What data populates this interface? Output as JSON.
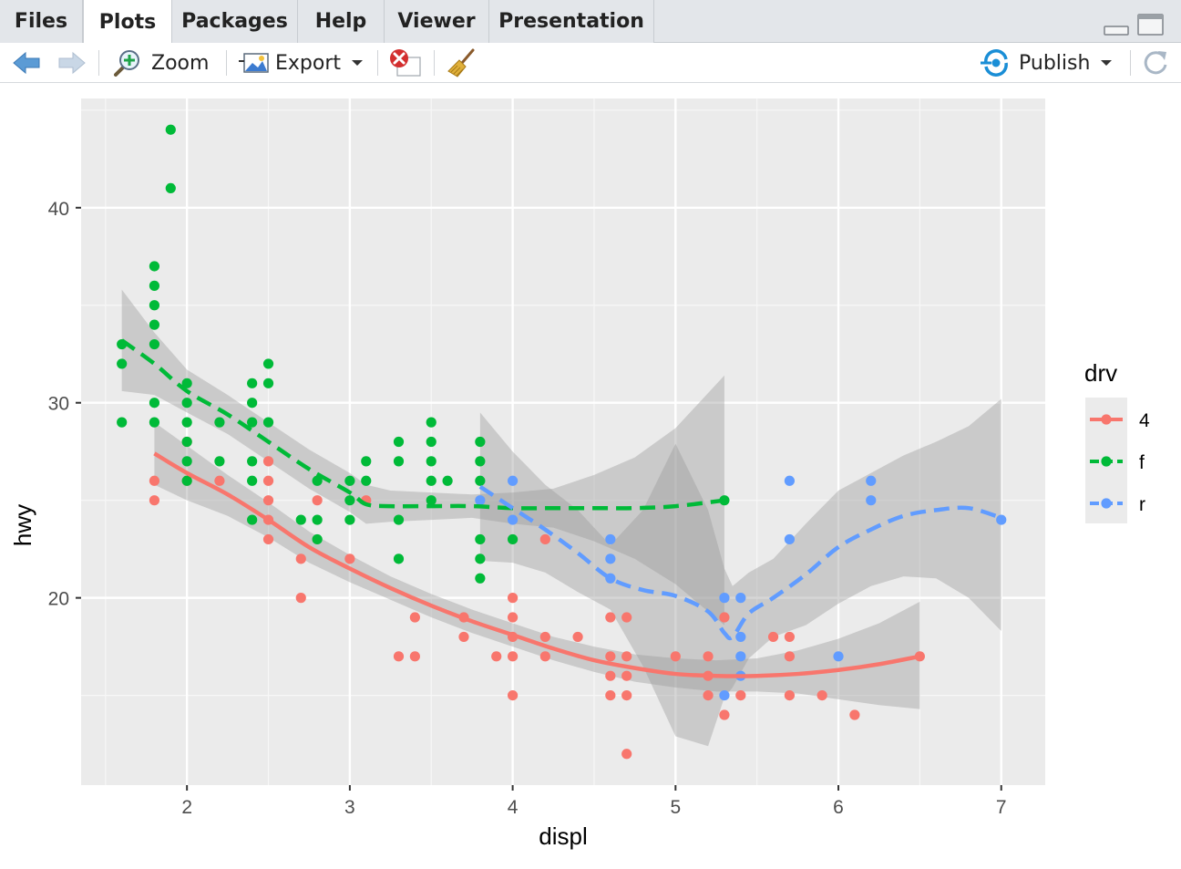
{
  "tabs": [
    {
      "label": "Files",
      "active": false
    },
    {
      "label": "Plots",
      "active": true
    },
    {
      "label": "Packages",
      "active": false
    },
    {
      "label": "Help",
      "active": false
    },
    {
      "label": "Viewer",
      "active": false
    },
    {
      "label": "Presentation",
      "active": false
    }
  ],
  "toolbar": {
    "zoom_label": "Zoom",
    "export_label": "Export",
    "publish_label": "Publish"
  },
  "colors": {
    "publish_blue": "#1a8ed6",
    "panel_bg": "#ebebeb",
    "series_4": "#f8766d",
    "series_f": "#00ba38",
    "series_r": "#619cff"
  },
  "icons": [
    "back-arrow-icon",
    "forward-arrow-icon",
    "zoom-icon",
    "export-icon",
    "remove-plot-icon",
    "broom-icon",
    "publish-icon",
    "refresh-icon",
    "minimize-icon",
    "maximize-icon"
  ],
  "chart_data": {
    "type": "scatter",
    "xlabel": "displ",
    "ylabel": "hwy",
    "xlim": [
      1.35,
      7.27
    ],
    "ylim": [
      10.4,
      45.6
    ],
    "xticks": [
      2,
      3,
      4,
      5,
      6,
      7
    ],
    "yticks": [
      20,
      30,
      40
    ],
    "grid": true,
    "legend": {
      "title": "drv",
      "position": "right",
      "entries": [
        "4",
        "f",
        "r"
      ]
    },
    "series": [
      {
        "name": "4",
        "line_style": "solid",
        "points": [
          [
            1.8,
            26
          ],
          [
            1.8,
            25
          ],
          [
            2.0,
            28
          ],
          [
            2.0,
            26
          ],
          [
            2.2,
            26
          ],
          [
            2.5,
            27
          ],
          [
            2.5,
            26
          ],
          [
            2.5,
            25
          ],
          [
            2.5,
            24
          ],
          [
            2.5,
            23
          ],
          [
            2.7,
            22
          ],
          [
            2.7,
            20
          ],
          [
            2.8,
            25
          ],
          [
            3.0,
            22
          ],
          [
            3.1,
            25
          ],
          [
            3.3,
            17
          ],
          [
            3.4,
            17
          ],
          [
            3.4,
            19
          ],
          [
            3.7,
            19
          ],
          [
            3.7,
            18
          ],
          [
            3.9,
            17
          ],
          [
            4.0,
            20
          ],
          [
            4.0,
            19
          ],
          [
            4.0,
            18
          ],
          [
            4.0,
            17
          ],
          [
            4.0,
            15
          ],
          [
            4.2,
            23
          ],
          [
            4.2,
            18
          ],
          [
            4.2,
            17
          ],
          [
            4.4,
            18
          ],
          [
            4.6,
            19
          ],
          [
            4.6,
            17
          ],
          [
            4.6,
            16
          ],
          [
            4.6,
            15
          ],
          [
            4.7,
            19
          ],
          [
            4.7,
            17
          ],
          [
            4.7,
            16
          ],
          [
            4.7,
            15
          ],
          [
            4.7,
            12
          ],
          [
            5.0,
            17
          ],
          [
            5.2,
            17
          ],
          [
            5.2,
            16
          ],
          [
            5.2,
            15
          ],
          [
            5.3,
            19
          ],
          [
            5.3,
            14
          ],
          [
            5.4,
            15
          ],
          [
            5.6,
            18
          ],
          [
            5.7,
            18
          ],
          [
            5.7,
            17
          ],
          [
            5.7,
            15
          ],
          [
            5.9,
            15
          ],
          [
            6.1,
            14
          ],
          [
            6.5,
            17
          ]
        ],
        "fit": [
          [
            1.8,
            27.4
          ],
          [
            2.0,
            26.4
          ],
          [
            2.25,
            25.3
          ],
          [
            2.5,
            24.0
          ],
          [
            2.75,
            22.6
          ],
          [
            3.0,
            21.5
          ],
          [
            3.25,
            20.5
          ],
          [
            3.5,
            19.6
          ],
          [
            3.75,
            18.8
          ],
          [
            4.0,
            18.1
          ],
          [
            4.25,
            17.4
          ],
          [
            4.5,
            16.8
          ],
          [
            4.75,
            16.4
          ],
          [
            5.0,
            16.1
          ],
          [
            5.25,
            16.0
          ],
          [
            5.5,
            16.0
          ],
          [
            5.75,
            16.1
          ],
          [
            6.0,
            16.3
          ],
          [
            6.25,
            16.6
          ],
          [
            6.5,
            17.0
          ]
        ],
        "band": [
          [
            1.8,
            29.0,
            25.8
          ],
          [
            2.0,
            27.8,
            25.0
          ],
          [
            2.25,
            26.3,
            24.2
          ],
          [
            2.5,
            24.9,
            23.1
          ],
          [
            2.75,
            23.4,
            21.8
          ],
          [
            3.0,
            22.2,
            20.8
          ],
          [
            3.25,
            21.1,
            19.9
          ],
          [
            3.5,
            20.2,
            19.0
          ],
          [
            3.75,
            19.4,
            18.2
          ],
          [
            4.0,
            18.7,
            17.5
          ],
          [
            4.25,
            18.0,
            16.8
          ],
          [
            4.5,
            17.5,
            16.2
          ],
          [
            4.75,
            17.1,
            15.7
          ],
          [
            5.0,
            16.9,
            15.4
          ],
          [
            5.25,
            16.8,
            15.2
          ],
          [
            5.5,
            16.9,
            15.2
          ],
          [
            5.75,
            17.3,
            15.1
          ],
          [
            6.0,
            17.9,
            14.8
          ],
          [
            6.25,
            18.7,
            14.5
          ],
          [
            6.5,
            19.8,
            14.3
          ]
        ]
      },
      {
        "name": "f",
        "line_style": "dashed",
        "points": [
          [
            1.6,
            33
          ],
          [
            1.6,
            32
          ],
          [
            1.6,
            29
          ],
          [
            1.8,
            37
          ],
          [
            1.8,
            36
          ],
          [
            1.8,
            35
          ],
          [
            1.8,
            34
          ],
          [
            1.8,
            33
          ],
          [
            1.8,
            30
          ],
          [
            1.8,
            29
          ],
          [
            1.9,
            44
          ],
          [
            1.9,
            41
          ],
          [
            2.0,
            31
          ],
          [
            2.0,
            30
          ],
          [
            2.0,
            29
          ],
          [
            2.0,
            28
          ],
          [
            2.0,
            27
          ],
          [
            2.0,
            26
          ],
          [
            2.2,
            29
          ],
          [
            2.2,
            27
          ],
          [
            2.4,
            31
          ],
          [
            2.4,
            30
          ],
          [
            2.4,
            29
          ],
          [
            2.4,
            27
          ],
          [
            2.4,
            26
          ],
          [
            2.4,
            24
          ],
          [
            2.5,
            32
          ],
          [
            2.5,
            31
          ],
          [
            2.5,
            29
          ],
          [
            2.7,
            24
          ],
          [
            2.8,
            26
          ],
          [
            2.8,
            24
          ],
          [
            2.8,
            23
          ],
          [
            3.0,
            26
          ],
          [
            3.0,
            25
          ],
          [
            3.0,
            24
          ],
          [
            3.1,
            27
          ],
          [
            3.1,
            26
          ],
          [
            3.3,
            28
          ],
          [
            3.3,
            27
          ],
          [
            3.3,
            24
          ],
          [
            3.3,
            22
          ],
          [
            3.5,
            29
          ],
          [
            3.5,
            28
          ],
          [
            3.5,
            27
          ],
          [
            3.5,
            26
          ],
          [
            3.5,
            25
          ],
          [
            3.6,
            26
          ],
          [
            3.8,
            28
          ],
          [
            3.8,
            27
          ],
          [
            3.8,
            26
          ],
          [
            3.8,
            23
          ],
          [
            3.8,
            22
          ],
          [
            3.8,
            21
          ],
          [
            4.0,
            23
          ],
          [
            5.3,
            25
          ]
        ],
        "fit": [
          [
            1.6,
            33.2
          ],
          [
            1.8,
            32.0
          ],
          [
            2.0,
            30.6
          ],
          [
            2.25,
            29.4
          ],
          [
            2.5,
            28.0
          ],
          [
            2.75,
            26.6
          ],
          [
            3.0,
            25.4
          ],
          [
            3.1,
            24.8
          ],
          [
            3.25,
            24.7
          ],
          [
            3.5,
            24.7
          ],
          [
            3.75,
            24.7
          ],
          [
            4.0,
            24.6
          ],
          [
            4.25,
            24.6
          ],
          [
            4.5,
            24.6
          ],
          [
            4.75,
            24.6
          ],
          [
            5.0,
            24.7
          ],
          [
            5.3,
            25.0
          ]
        ],
        "band": [
          [
            1.6,
            35.8,
            30.6
          ],
          [
            1.8,
            33.6,
            30.4
          ],
          [
            2.0,
            31.7,
            29.5
          ],
          [
            2.25,
            30.4,
            28.4
          ],
          [
            2.5,
            29.0,
            27.0
          ],
          [
            2.75,
            27.6,
            25.6
          ],
          [
            3.0,
            26.4,
            24.4
          ],
          [
            3.1,
            25.8,
            23.8
          ],
          [
            3.25,
            25.5,
            23.9
          ],
          [
            3.5,
            25.4,
            24.0
          ],
          [
            3.75,
            25.3,
            24.1
          ],
          [
            4.0,
            25.4,
            23.8
          ],
          [
            4.25,
            25.6,
            23.6
          ],
          [
            4.5,
            26.3,
            22.9
          ],
          [
            4.75,
            27.2,
            22.0
          ],
          [
            5.0,
            28.7,
            20.7
          ],
          [
            5.3,
            31.4,
            18.6
          ]
        ]
      },
      {
        "name": "r",
        "line_style": "dashed",
        "points": [
          [
            3.8,
            25
          ],
          [
            4.0,
            26
          ],
          [
            4.0,
            24
          ],
          [
            4.6,
            23
          ],
          [
            4.6,
            22
          ],
          [
            4.6,
            21
          ],
          [
            5.3,
            20
          ],
          [
            5.3,
            15
          ],
          [
            5.4,
            20
          ],
          [
            5.4,
            18
          ],
          [
            5.4,
            17
          ],
          [
            5.4,
            16
          ],
          [
            5.7,
            26
          ],
          [
            5.7,
            23
          ],
          [
            6.0,
            17
          ],
          [
            6.2,
            26
          ],
          [
            6.2,
            25
          ],
          [
            7.0,
            24
          ]
        ],
        "fit": [
          [
            3.8,
            25.7
          ],
          [
            4.0,
            24.6
          ],
          [
            4.2,
            23.5
          ],
          [
            4.4,
            22.3
          ],
          [
            4.6,
            21.0
          ],
          [
            4.8,
            20.4
          ],
          [
            5.0,
            20.1
          ],
          [
            5.2,
            19.3
          ],
          [
            5.3,
            18.2
          ],
          [
            5.35,
            18.0
          ],
          [
            5.45,
            19.2
          ],
          [
            5.6,
            20.0
          ],
          [
            5.8,
            21.2
          ],
          [
            6.0,
            22.6
          ],
          [
            6.2,
            23.5
          ],
          [
            6.4,
            24.2
          ],
          [
            6.6,
            24.5
          ],
          [
            6.8,
            24.6
          ],
          [
            7.0,
            24.1
          ]
        ],
        "band": [
          [
            3.8,
            29.5,
            21.9
          ],
          [
            4.0,
            27.5,
            21.8
          ],
          [
            4.2,
            25.8,
            21.3
          ],
          [
            4.4,
            24.5,
            20.3
          ],
          [
            4.6,
            22.7,
            19.4
          ],
          [
            4.8,
            24.5,
            16.5
          ],
          [
            5.0,
            27.9,
            12.9
          ],
          [
            5.2,
            24.5,
            12.4
          ],
          [
            5.3,
            21.5,
            14.9
          ],
          [
            5.35,
            20.6,
            15.4
          ],
          [
            5.45,
            21.3,
            16.9
          ],
          [
            5.6,
            22.0,
            18.0
          ],
          [
            5.8,
            23.8,
            18.6
          ],
          [
            6.0,
            25.5,
            19.7
          ],
          [
            6.2,
            26.4,
            20.6
          ],
          [
            6.4,
            27.3,
            21.1
          ],
          [
            6.6,
            28.0,
            21.0
          ],
          [
            6.8,
            28.8,
            20.0
          ],
          [
            7.0,
            30.2,
            18.3
          ]
        ]
      }
    ]
  }
}
